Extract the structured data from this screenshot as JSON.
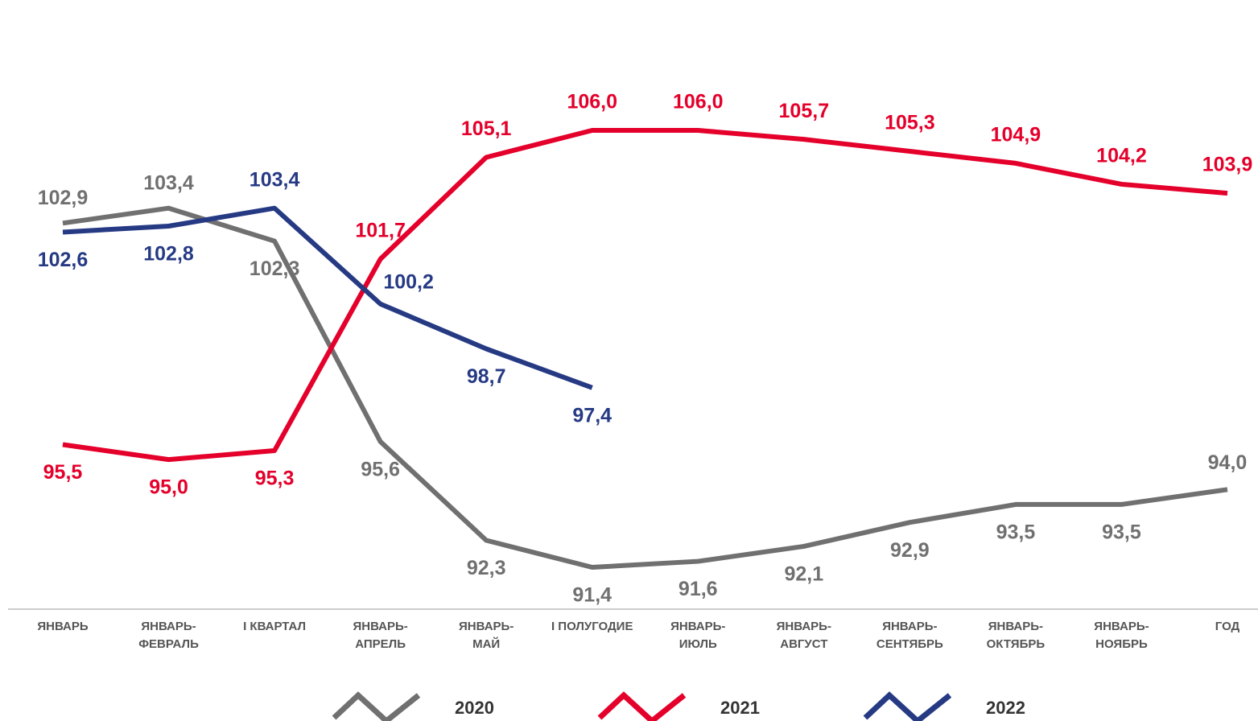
{
  "chart_data": {
    "type": "line",
    "categories": [
      "ЯНВАРЬ",
      "ЯНВАРЬ-\nФЕВРАЛЬ",
      "I КВАРТАЛ",
      "ЯНВАРЬ-\nАПРЕЛЬ",
      "ЯНВАРЬ-\nМАЙ",
      "I ПОЛУГОДИЕ",
      "ЯНВАРЬ-\nИЮЛЬ",
      "ЯНВАРЬ-\nАВГУСТ",
      "ЯНВАРЬ-\nСЕНТЯБРЬ",
      "ЯНВАРЬ-\nОКТЯБРЬ",
      "ЯНВАРЬ-\nНОЯБРЬ",
      "ГОД"
    ],
    "series": [
      {
        "name": "2020",
        "color": "#707070",
        "values": [
          102.9,
          103.4,
          102.3,
          95.6,
          92.3,
          91.4,
          91.6,
          92.1,
          92.9,
          93.5,
          93.5,
          94.0
        ],
        "value_labels": [
          "102,9",
          "103,4",
          "102,3",
          "95,6",
          "92,3",
          "91,4",
          "91,6",
          "92,1",
          "92,9",
          "93,5",
          "93,5",
          "94,0"
        ]
      },
      {
        "name": "2021",
        "color": "#e4002b",
        "values": [
          95.5,
          95.0,
          95.3,
          101.7,
          105.1,
          106.0,
          106.0,
          105.7,
          105.3,
          104.9,
          104.2,
          103.9
        ],
        "value_labels": [
          "95,5",
          "95,0",
          "95,3",
          "101,7",
          "105,1",
          "106,0",
          "106,0",
          "105,7",
          "105,3",
          "104,9",
          "104,2",
          "103,9"
        ]
      },
      {
        "name": "2022",
        "color": "#263a84",
        "values": [
          102.6,
          102.8,
          103.4,
          100.2,
          98.7,
          97.4,
          null,
          null,
          null,
          null,
          null,
          null
        ],
        "value_labels": [
          "102,6",
          "102,8",
          "103,4",
          "100,2",
          "98,7",
          "97,4",
          null,
          null,
          null,
          null,
          null,
          null
        ]
      }
    ],
    "legend": "bottom"
  }
}
